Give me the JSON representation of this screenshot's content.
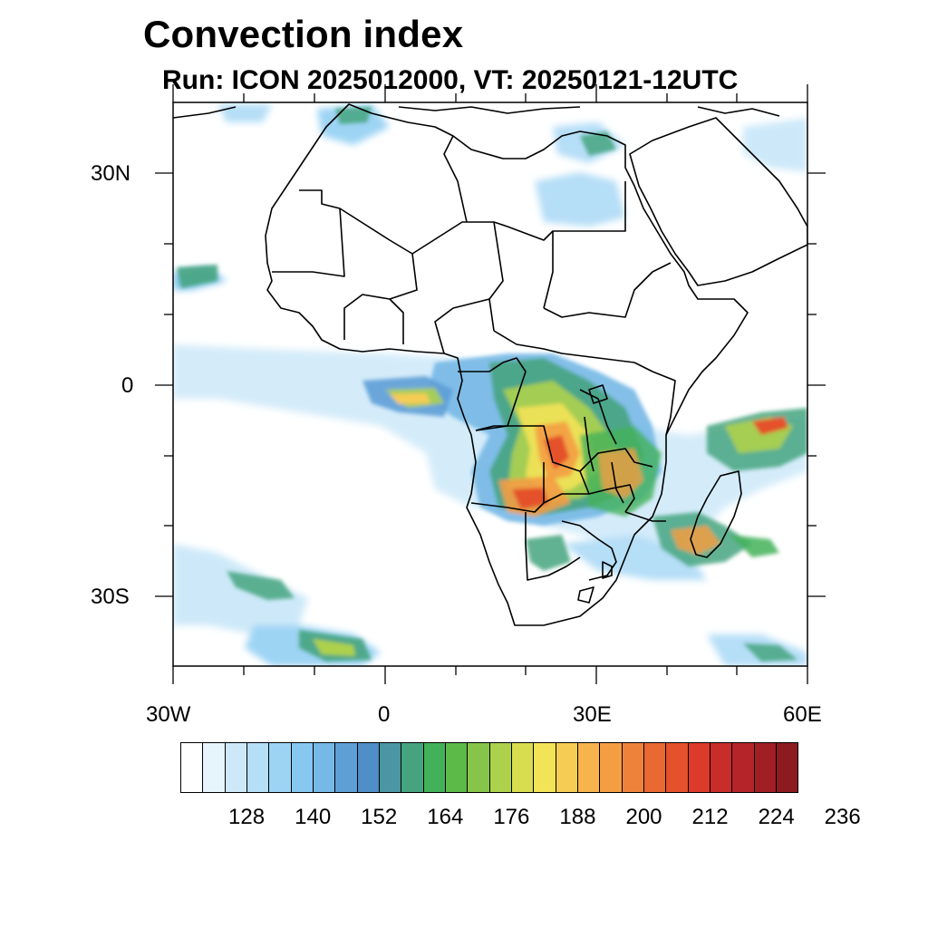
{
  "map": {
    "title": "Convection index",
    "subtitle": "Run: ICON 2025012000,  VT: 20250121-12UTC",
    "region": "Africa and surrounding oceans",
    "lon_range": [
      -30,
      60
    ],
    "lat_range": [
      -40,
      40
    ],
    "lat_labels": [
      "30N",
      "0",
      "30S"
    ],
    "lon_labels": [
      "30W",
      "0",
      "30E",
      "60E"
    ],
    "colorbar": {
      "colors": [
        "#ffffff",
        "#e6f4fc",
        "#cde9f9",
        "#b5def7",
        "#9dd4f4",
        "#86c8ef",
        "#76b8e6",
        "#5e9fd6",
        "#4f8ec6",
        "#4a97a3",
        "#45a47f",
        "#43b15a",
        "#5cba49",
        "#86c54a",
        "#aed14c",
        "#d8dc4f",
        "#f3e357",
        "#f6cc55",
        "#f7b44d",
        "#f49d43",
        "#ef823a",
        "#ea6832",
        "#e4512c",
        "#dc3a2a",
        "#c92d2a",
        "#b52428",
        "#a01f24",
        "#8b1b1f"
      ],
      "tick_labels": [
        "128",
        "140",
        "152",
        "164",
        "176",
        "188",
        "200",
        "212",
        "224",
        "236"
      ]
    }
  }
}
